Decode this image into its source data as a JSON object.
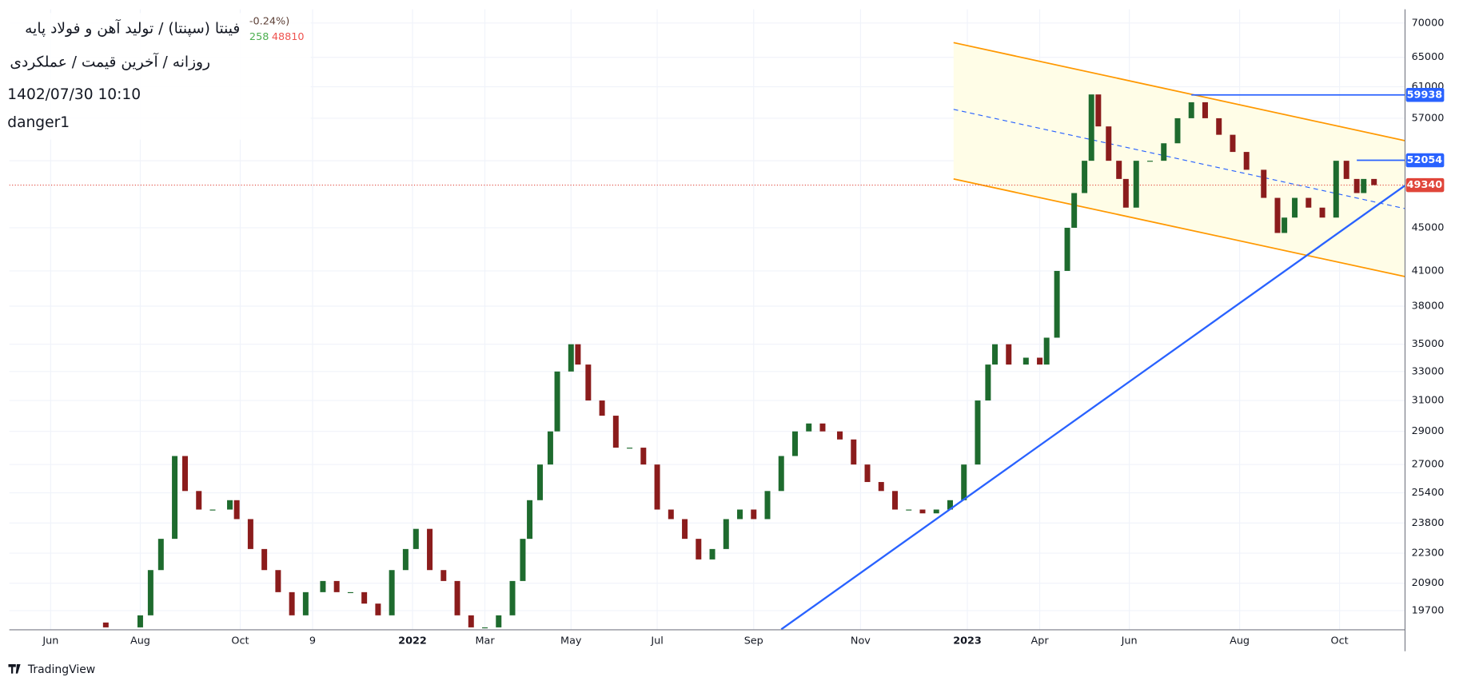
{
  "chart_data": {
    "type": "candlestick",
    "title": "فینتا (سپنتا) / تولید آهن و فولاد پایه",
    "subtitle": "روزانه / آخرین قیمت / عملکردی",
    "timestamp": "1402/07/30 10:10",
    "annotation": "danger1",
    "legend_fragments": [
      "-0.24%)",
      "258",
      "48810"
    ],
    "brand": "TradingView",
    "log_scale": true,
    "grid": true,
    "up_color": "#1e6b2e",
    "down_color": "#8b1c1c",
    "xlim": [
      0,
      405
    ],
    "xticks": [
      {
        "value": 12,
        "label": "Jun"
      },
      {
        "value": 38,
        "label": "Aug"
      },
      {
        "value": 67,
        "label": "Oct"
      },
      {
        "value": 88,
        "label": "9"
      },
      {
        "value": 117,
        "label": "2022"
      },
      {
        "value": 138,
        "label": "Mar"
      },
      {
        "value": 163,
        "label": "May"
      },
      {
        "value": 188,
        "label": "Jul"
      },
      {
        "value": 216,
        "label": "Sep"
      },
      {
        "value": 247,
        "label": "Nov"
      },
      {
        "value": 278,
        "label": "2023"
      },
      {
        "value": 299,
        "label": "Apr"
      },
      {
        "value": 325,
        "label": "Jun"
      },
      {
        "value": 357,
        "label": "Aug"
      },
      {
        "value": 386,
        "label": "Oct"
      }
    ],
    "bold_xticks": [
      "2022",
      "2023"
    ],
    "ylim": [
      18900,
      72100
    ],
    "yticks": [
      19700,
      20900,
      22300,
      23800,
      25400,
      27000,
      29000,
      31000,
      33000,
      35000,
      38000,
      41000,
      45000,
      52000,
      57000,
      61000,
      65000,
      70000
    ],
    "x": [
      28,
      38,
      41,
      44,
      48,
      51,
      55,
      59,
      64,
      66,
      70,
      74,
      78,
      82,
      86,
      91,
      95,
      99,
      103,
      107,
      111,
      115,
      118,
      122,
      126,
      130,
      134,
      138,
      142,
      146,
      149,
      151,
      154,
      157,
      159,
      163,
      165,
      168,
      172,
      176,
      180,
      184,
      188,
      192,
      196,
      200,
      204,
      208,
      212,
      216,
      220,
      224,
      228,
      232,
      236,
      241,
      245,
      249,
      253,
      257,
      261,
      265,
      269,
      273,
      277,
      281,
      284,
      286,
      290,
      295,
      299,
      301,
      304,
      307,
      309,
      312,
      314,
      316,
      319,
      322,
      324,
      327,
      331,
      335,
      339,
      343,
      347,
      351,
      355,
      359,
      364,
      368,
      370,
      373,
      377,
      381,
      385,
      388,
      391,
      393,
      396
    ],
    "open": [
      19200,
      19000,
      19500,
      21500,
      23000,
      27500,
      25500,
      24500,
      24500,
      25000,
      24000,
      22500,
      21500,
      20500,
      19500,
      20500,
      21000,
      20500,
      20500,
      20000,
      19500,
      21500,
      22500,
      23500,
      21500,
      21000,
      19500,
      19000,
      19000,
      19500,
      21000,
      23000,
      25000,
      27000,
      29000,
      33000,
      35000,
      33500,
      31000,
      30000,
      28000,
      28000,
      27000,
      24500,
      24000,
      23000,
      22000,
      22500,
      24000,
      24500,
      24000,
      25500,
      27500,
      29000,
      29500,
      29000,
      28500,
      27000,
      26000,
      25500,
      24500,
      24500,
      24300,
      24500,
      25000,
      27000,
      31000,
      33500,
      35000,
      33500,
      34000,
      33500,
      35500,
      41000,
      45000,
      48500,
      52000,
      60000,
      56000,
      52000,
      50000,
      47000,
      52000,
      52000,
      54000,
      57000,
      59000,
      57000,
      55000,
      53000,
      51000,
      48000,
      44500,
      46000,
      48000,
      47000,
      46000,
      52000,
      50000,
      48500,
      50000
    ],
    "close": [
      19000,
      19500,
      21500,
      23000,
      27500,
      25500,
      24500,
      24500,
      25000,
      24000,
      22500,
      21500,
      20500,
      19500,
      20500,
      21000,
      20500,
      20500,
      20000,
      19500,
      21500,
      22500,
      23500,
      21500,
      21000,
      19500,
      19000,
      19000,
      19500,
      21000,
      23000,
      25000,
      27000,
      29000,
      33000,
      35000,
      33500,
      31000,
      30000,
      28000,
      28000,
      27000,
      24500,
      24000,
      23000,
      22000,
      22500,
      24000,
      24500,
      24000,
      25500,
      27500,
      29000,
      29500,
      29000,
      28500,
      27000,
      26000,
      25500,
      24500,
      24500,
      24300,
      24500,
      25000,
      27000,
      31000,
      33500,
      35000,
      33500,
      34000,
      33500,
      35500,
      41000,
      45000,
      48500,
      52000,
      60000,
      56000,
      52000,
      50000,
      47000,
      52000,
      52000,
      54000,
      57000,
      59000,
      57000,
      55000,
      53000,
      51000,
      48000,
      44500,
      46000,
      48000,
      47000,
      46000,
      52000,
      50000,
      48500,
      50000,
      49340
    ],
    "channel": {
      "x": [
        274,
        405
      ],
      "upper": [
        67100,
        54300
      ],
      "middle": [
        58100,
        46900
      ],
      "lower": [
        50000,
        40500
      ],
      "color": "#ff9800",
      "fill": "#fffde7"
    },
    "trend_line": {
      "x": [
        224,
        405
      ],
      "values": [
        18920,
        49300
      ],
      "color": "#2962ff"
    },
    "price_levels": [
      {
        "value": 59938,
        "x_start": 343,
        "color": "#2962ff"
      },
      {
        "value": 52054,
        "x_start": 391,
        "color": "#2962ff"
      },
      {
        "value": 49340,
        "x_start": 0,
        "color": "#e0453a",
        "dotted": true
      }
    ]
  }
}
